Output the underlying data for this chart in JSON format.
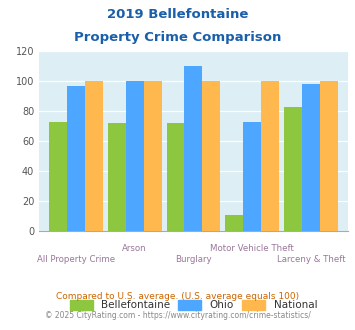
{
  "title_line1": "2019 Bellefontaine",
  "title_line2": "Property Crime Comparison",
  "categories": [
    "All Property Crime",
    "Arson",
    "Burglary",
    "Motor Vehicle Theft",
    "Larceny & Theft"
  ],
  "bellefontaine": [
    73,
    72,
    72,
    11,
    83
  ],
  "ohio": [
    97,
    100,
    110,
    73,
    98
  ],
  "national": [
    100,
    100,
    100,
    100,
    100
  ],
  "bar_color_belle": "#8dc63f",
  "bar_color_ohio": "#4da6ff",
  "bar_color_national": "#ffb84d",
  "ylim": [
    0,
    120
  ],
  "yticks": [
    0,
    20,
    40,
    60,
    80,
    100,
    120
  ],
  "background_color": "#ddeef4",
  "legend_labels": [
    "Bellefontaine",
    "Ohio",
    "National"
  ],
  "footnote1": "Compared to U.S. average. (U.S. average equals 100)",
  "footnote2": "© 2025 CityRating.com - https://www.cityrating.com/crime-statistics/",
  "title_color": "#1a5faa",
  "footnote1_color": "#cc6600",
  "footnote2_color": "#888888",
  "xlabel_color": "#997799",
  "lower_label_indices": [
    0,
    2,
    4
  ],
  "upper_label_indices": [
    1,
    3
  ]
}
